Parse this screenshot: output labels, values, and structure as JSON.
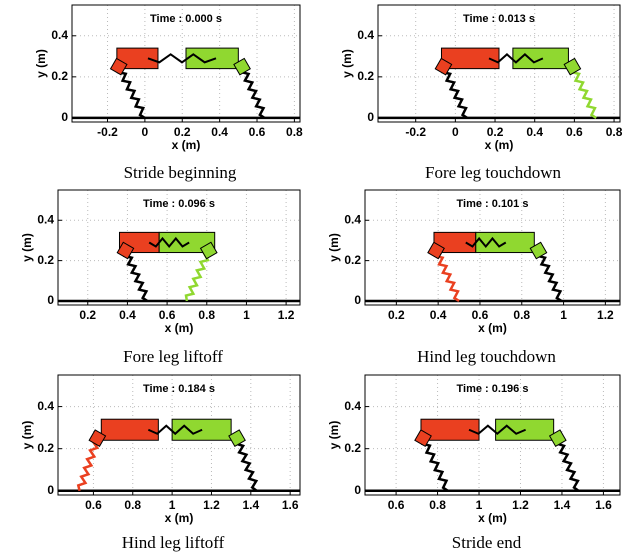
{
  "chart_data": [
    {
      "type": "plot",
      "annotation": "Time : 0.000 s",
      "xlabel": "x (m)",
      "ylabel": "y (m)",
      "caption": "Stride beginning",
      "xlim": [
        -0.39,
        0.83
      ],
      "ylim": [
        -0.02,
        0.55
      ],
      "xticks": [
        -0.2,
        0,
        0.2,
        0.4,
        0.6,
        0.8
      ],
      "yticks": [
        0,
        0.2,
        0.4
      ],
      "grid": true,
      "body_y": [
        0.24,
        0.34
      ],
      "leg_y": [
        0.25,
        0
      ],
      "bodies": [
        {
          "color": "#ea4020",
          "x": [
            -0.15,
            0.07
          ]
        },
        {
          "color": "#90d830",
          "x": [
            0.22,
            0.5
          ]
        }
      ],
      "legs": [
        {
          "color": "#000000",
          "x": [
            -0.14,
            0.0
          ]
        },
        {
          "color": "#000000",
          "x": [
            0.52,
            0.64
          ]
        }
      ]
    },
    {
      "type": "plot",
      "annotation": "Time : 0.013 s",
      "xlabel": "x (m)",
      "ylabel": "y (m)",
      "caption": "Fore leg touchdown",
      "xlim": [
        -0.39,
        0.83
      ],
      "ylim": [
        -0.02,
        0.55
      ],
      "xticks": [
        -0.2,
        0,
        0.2,
        0.4,
        0.6,
        0.8
      ],
      "yticks": [
        0,
        0.2,
        0.4
      ],
      "grid": true,
      "body_y": [
        0.24,
        0.34
      ],
      "leg_y": [
        0.25,
        0
      ],
      "bodies": [
        {
          "color": "#ea4020",
          "x": [
            -0.07,
            0.22
          ]
        },
        {
          "color": "#90d830",
          "x": [
            0.29,
            0.57
          ]
        }
      ],
      "legs": [
        {
          "color": "#000000",
          "x": [
            -0.06,
            0.06
          ]
        },
        {
          "color": "#90d830",
          "x": [
            0.59,
            0.71
          ]
        }
      ]
    },
    {
      "type": "plot",
      "annotation": "Time : 0.096 s",
      "xlabel": "x (m)",
      "ylabel": "y (m)",
      "caption": "Fore leg liftoff",
      "xlim": [
        0.05,
        1.27
      ],
      "ylim": [
        -0.02,
        0.55
      ],
      "xticks": [
        0.2,
        0.4,
        0.6,
        0.8,
        1,
        1.2
      ],
      "yticks": [
        0,
        0.2,
        0.4
      ],
      "grid": true,
      "body_y": [
        0.24,
        0.34
      ],
      "leg_y": [
        0.25,
        0
      ],
      "bodies": [
        {
          "color": "#ea4020",
          "x": [
            0.36,
            0.56
          ]
        },
        {
          "color": "#90d830",
          "x": [
            0.56,
            0.84
          ]
        }
      ],
      "legs": [
        {
          "color": "#000000",
          "x": [
            0.39,
            0.5
          ]
        },
        {
          "color": "#90d830",
          "x": [
            0.81,
            0.7
          ]
        }
      ]
    },
    {
      "type": "plot",
      "annotation": "Time : 0.101 s",
      "xlabel": "x (m)",
      "ylabel": "y (m)",
      "caption": "Hind leg touchdown",
      "xlim": [
        0.05,
        1.27
      ],
      "ylim": [
        -0.02,
        0.55
      ],
      "xticks": [
        0.2,
        0.4,
        0.6,
        0.8,
        1,
        1.2
      ],
      "yticks": [
        0,
        0.2,
        0.4
      ],
      "grid": true,
      "body_y": [
        0.24,
        0.34
      ],
      "leg_y": [
        0.25,
        0
      ],
      "bodies": [
        {
          "color": "#ea4020",
          "x": [
            0.38,
            0.58
          ]
        },
        {
          "color": "#90d830",
          "x": [
            0.58,
            0.86
          ]
        }
      ],
      "legs": [
        {
          "color": "#ea4020",
          "x": [
            0.39,
            0.5
          ]
        },
        {
          "color": "#000000",
          "x": [
            0.88,
            0.99
          ]
        }
      ]
    },
    {
      "type": "plot",
      "annotation": "Time : 0.184 s",
      "xlabel": "x (m)",
      "ylabel": "y (m)",
      "caption": "Hind leg liftoff",
      "xlim": [
        0.42,
        1.65
      ],
      "ylim": [
        -0.02,
        0.55
      ],
      "xticks": [
        0.6,
        0.8,
        1,
        1.2,
        1.4,
        1.6
      ],
      "yticks": [
        0,
        0.2,
        0.4
      ],
      "grid": true,
      "body_y": [
        0.24,
        0.34
      ],
      "leg_y": [
        0.25,
        0
      ],
      "bodies": [
        {
          "color": "#ea4020",
          "x": [
            0.64,
            0.93
          ]
        },
        {
          "color": "#90d830",
          "x": [
            1.0,
            1.3
          ]
        }
      ],
      "legs": [
        {
          "color": "#ea4020",
          "x": [
            0.62,
            0.53
          ]
        },
        {
          "color": "#000000",
          "x": [
            1.33,
            1.43
          ]
        }
      ]
    },
    {
      "type": "plot",
      "annotation": "Time : 0.196 s",
      "xlabel": "x (m)",
      "ylabel": "y (m)",
      "caption": "Stride end",
      "xlim": [
        0.45,
        1.68
      ],
      "ylim": [
        -0.02,
        0.55
      ],
      "xticks": [
        0.6,
        0.8,
        1,
        1.2,
        1.4,
        1.6
      ],
      "yticks": [
        0,
        0.2,
        0.4
      ],
      "grid": true,
      "body_y": [
        0.24,
        0.34
      ],
      "leg_y": [
        0.25,
        0
      ],
      "bodies": [
        {
          "color": "#ea4020",
          "x": [
            0.72,
            1.0
          ]
        },
        {
          "color": "#90d830",
          "x": [
            1.08,
            1.36
          ]
        }
      ],
      "legs": [
        {
          "color": "#000000",
          "x": [
            0.73,
            0.85
          ]
        },
        {
          "color": "#000000",
          "x": [
            1.38,
            1.48
          ]
        }
      ]
    }
  ]
}
